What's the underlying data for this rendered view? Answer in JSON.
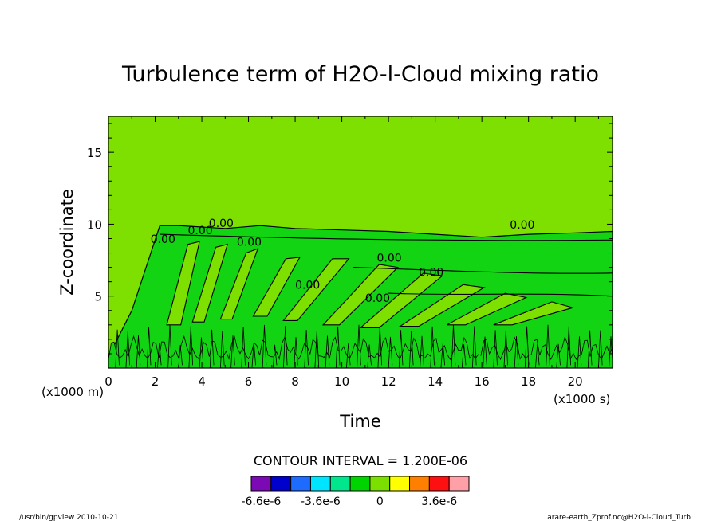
{
  "chart_data": {
    "type": "contour",
    "title": "Turbulence term of H2O-l-Cloud mixing ratio",
    "xlabel": "Time",
    "ylabel": "Z-coordinate",
    "x_unit_label": "(x1000 s)",
    "y_unit_label": "(x1000 m)",
    "xlim": [
      0,
      21.6
    ],
    "ylim": [
      0,
      17.5
    ],
    "x_ticks": [
      0,
      2,
      4,
      6,
      8,
      10,
      12,
      14,
      16,
      18,
      20
    ],
    "y_ticks": [
      5,
      10,
      15
    ],
    "x_tick_labels": [
      "0",
      "2",
      "4",
      "6",
      "8",
      "10",
      "12",
      "14",
      "16",
      "18",
      "20"
    ],
    "y_tick_labels": [
      "5",
      "10",
      "15"
    ],
    "contour_interval_text": "CONTOUR INTERVAL = 1.200E-06",
    "contour_labels": [
      {
        "t": 1.8,
        "z": 8.7,
        "text": "0.00"
      },
      {
        "t": 3.4,
        "z": 9.3,
        "text": "0.00"
      },
      {
        "t": 4.3,
        "z": 9.8,
        "text": "0.00"
      },
      {
        "t": 5.5,
        "z": 8.5,
        "text": "0.00"
      },
      {
        "t": 8.0,
        "z": 5.5,
        "text": "0.00"
      },
      {
        "t": 11.5,
        "z": 7.4,
        "text": "0.00"
      },
      {
        "t": 13.3,
        "z": 6.4,
        "text": "0.00"
      },
      {
        "t": 17.2,
        "z": 9.7,
        "text": "0.00"
      },
      {
        "t": 11.0,
        "z": 4.6,
        "text": "0.00"
      }
    ],
    "colorbar": {
      "levels": [
        -7.2e-06,
        -6e-06,
        -4.8e-06,
        -3.6e-06,
        -2.4e-06,
        -1.2e-06,
        0,
        1.2e-06,
        2.4e-06,
        3.6e-06,
        4.8e-06
      ],
      "colors": [
        "#7b0ab5",
        "#0000cc",
        "#1e6bff",
        "#00e5ff",
        "#00e68c",
        "#00d400",
        "#7be000",
        "#ffff00",
        "#ff8000",
        "#ff1010",
        "#ff9fa8"
      ],
      "tick_labels": [
        "-6.6e-6",
        "-3.6e-6",
        "0",
        "3.6e-6"
      ]
    },
    "background_color": "#7de000",
    "band_color": "#12d412"
  },
  "footer": {
    "left": "/usr/bin/gpview   2010-10-21",
    "right": "arare-earth_Zprof.nc@H2O-l-Cloud_Turb"
  }
}
